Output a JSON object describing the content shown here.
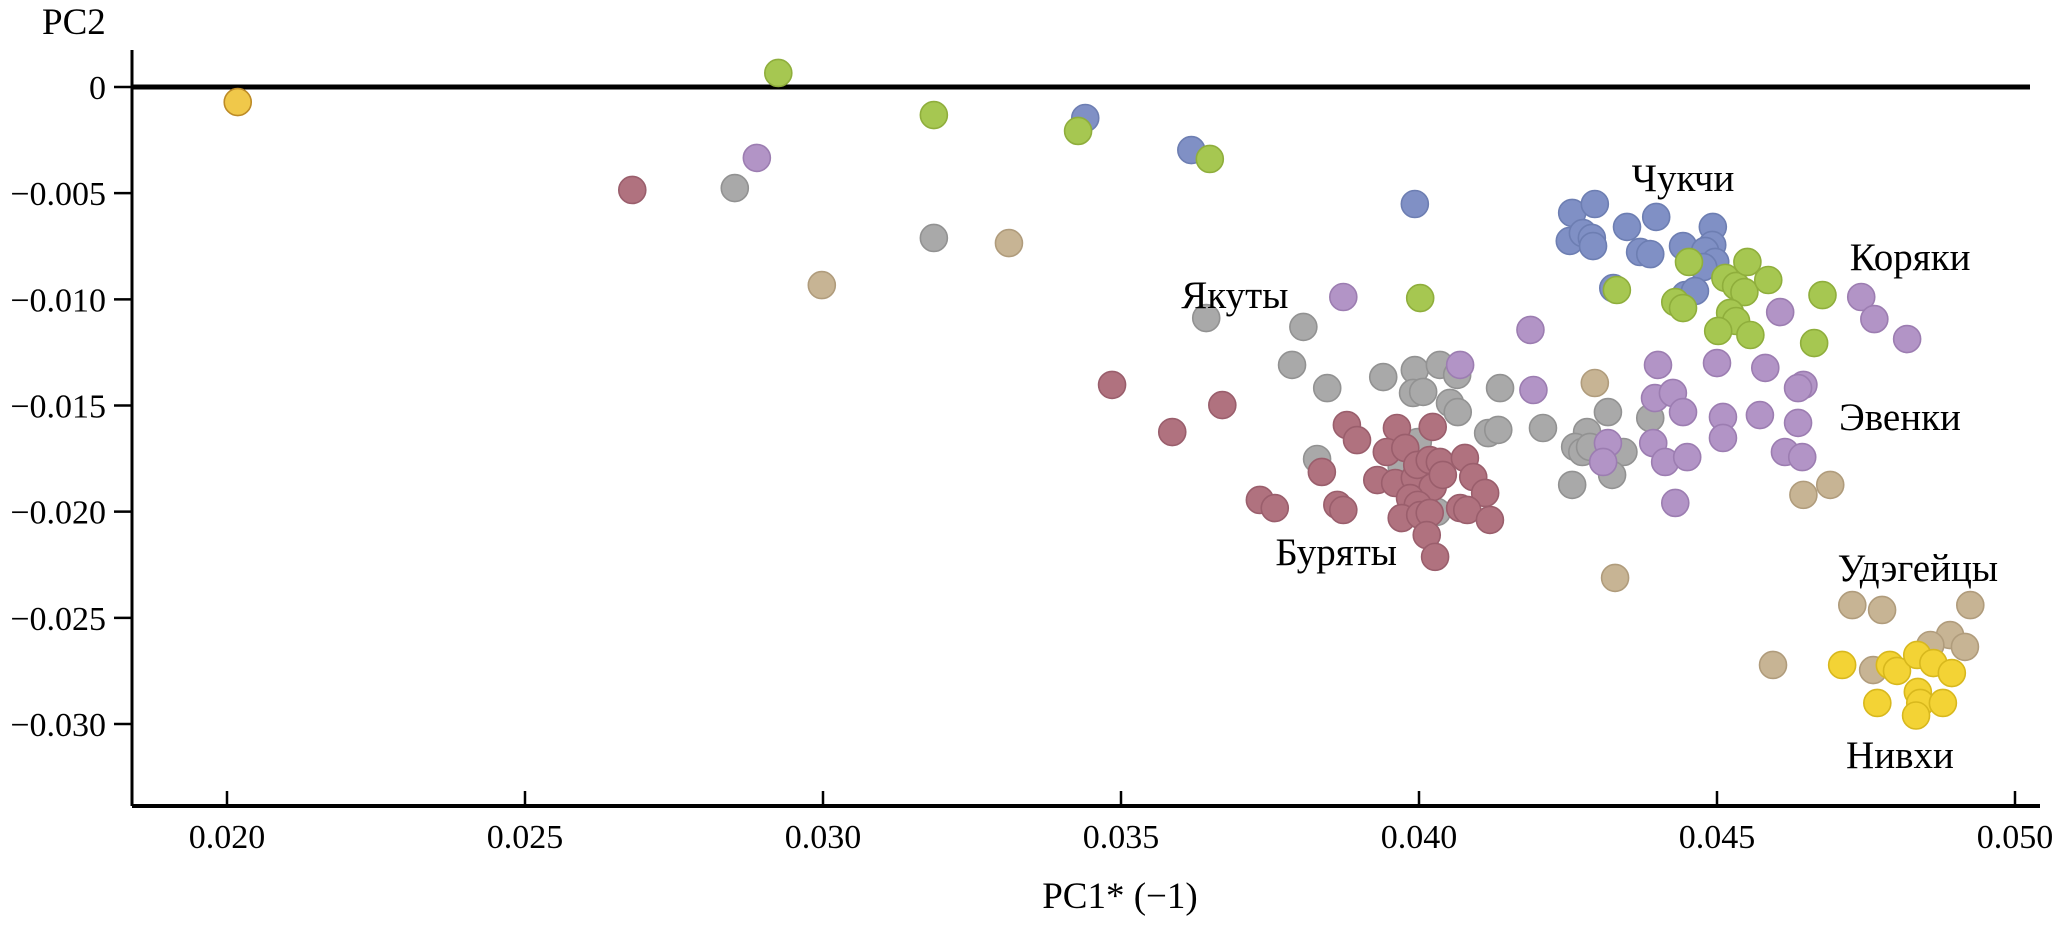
{
  "chart_data": {
    "type": "scatter",
    "xlabel": "PC1* (−1)",
    "ylabel": "PC2",
    "xlim": [
      0.0184,
      0.0504
    ],
    "ylim": [
      -0.0339,
      0.0017
    ],
    "grid": false,
    "legend": "none (clusters labeled inline)",
    "x_ticks": [
      0.02,
      0.025,
      0.03,
      0.035,
      0.04,
      0.045,
      0.05
    ],
    "x_tick_labels": [
      "0.020",
      "0.025",
      "0.030",
      "0.035",
      "0.040",
      "0.045",
      "0.050"
    ],
    "y_ticks": [
      0,
      -0.005,
      -0.01,
      -0.015,
      -0.02,
      -0.025,
      -0.03
    ],
    "y_tick_labels": [
      "0",
      "−0.005",
      "−0.010",
      "−0.015",
      "−0.020",
      "−0.025",
      "−0.030"
    ],
    "series": [
      {
        "name": "Якуты",
        "color": "#a9a9a9",
        "stroke": "#929292",
        "points": [
          [
            0.02852,
            -0.00476
          ],
          [
            0.03186,
            -0.00711
          ],
          [
            0.03643,
            -0.01088
          ],
          [
            0.03806,
            -0.0113
          ],
          [
            0.03787,
            -0.01309
          ],
          [
            0.03846,
            -0.01418
          ],
          [
            0.0394,
            -0.01366
          ],
          [
            0.03993,
            -0.01333
          ],
          [
            0.04035,
            -0.01309
          ],
          [
            0.04064,
            -0.01356
          ],
          [
            0.0399,
            -0.01441
          ],
          [
            0.04007,
            -0.01436
          ],
          [
            0.04052,
            -0.01488
          ],
          [
            0.04065,
            -0.01531
          ],
          [
            0.04136,
            -0.01418
          ],
          [
            0.04116,
            -0.0163
          ],
          [
            0.04133,
            -0.01615
          ],
          [
            0.04208,
            -0.01606
          ],
          [
            0.04317,
            -0.01531
          ],
          [
            0.04282,
            -0.01625
          ],
          [
            0.04262,
            -0.01695
          ],
          [
            0.04274,
            -0.01719
          ],
          [
            0.04287,
            -0.01695
          ],
          [
            0.04343,
            -0.01719
          ],
          [
            0.04324,
            -0.01827
          ],
          [
            0.04257,
            -0.01874
          ],
          [
            0.04388,
            -0.01559
          ],
          [
            0.03829,
            -0.01752
          ],
          [
            0.03998,
            -0.01672
          ],
          [
            0.03971,
            -0.0179
          ],
          [
            0.03997,
            -0.01921
          ],
          [
            0.0403,
            -0.02001
          ]
        ]
      },
      {
        "name": "Чукчи",
        "color": "#8090c5",
        "stroke": "#6d7eb2",
        "points": [
          [
            0.0344,
            -0.00146
          ],
          [
            0.03618,
            -0.00297
          ],
          [
            0.03993,
            -0.00551
          ],
          [
            0.04257,
            -0.00593
          ],
          [
            0.04295,
            -0.00551
          ],
          [
            0.04349,
            -0.00659
          ],
          [
            0.04398,
            -0.00612
          ],
          [
            0.04253,
            -0.00725
          ],
          [
            0.04275,
            -0.00688
          ],
          [
            0.0429,
            -0.00711
          ],
          [
            0.04292,
            -0.00749
          ],
          [
            0.04371,
            -0.00777
          ],
          [
            0.04388,
            -0.00787
          ],
          [
            0.04443,
            -0.00749
          ],
          [
            0.04493,
            -0.00659
          ],
          [
            0.04492,
            -0.00744
          ],
          [
            0.0448,
            -0.00772
          ],
          [
            0.04497,
            -0.00824
          ],
          [
            0.04477,
            -0.00848
          ],
          [
            0.04326,
            -0.00947
          ],
          [
            0.04447,
            -0.0098
          ],
          [
            0.04463,
            -0.00961
          ]
        ]
      },
      {
        "name": "Коряки",
        "color": "#a6c751",
        "stroke": "#8fae3c",
        "points": [
          [
            0.02925,
            0.00066
          ],
          [
            0.03186,
            -0.00132
          ],
          [
            0.03428,
            -0.00207
          ],
          [
            0.03649,
            -0.00339
          ],
          [
            0.04002,
            -0.00994
          ],
          [
            0.04332,
            -0.00956
          ],
          [
            0.04453,
            -0.00824
          ],
          [
            0.0443,
            -0.01013
          ],
          [
            0.04443,
            -0.01041
          ],
          [
            0.04514,
            -0.00899
          ],
          [
            0.04532,
            -0.00937
          ],
          [
            0.04546,
            -0.00966
          ],
          [
            0.04551,
            -0.00824
          ],
          [
            0.04586,
            -0.00909
          ],
          [
            0.04522,
            -0.01064
          ],
          [
            0.04532,
            -0.01102
          ],
          [
            0.04502,
            -0.01149
          ],
          [
            0.04556,
            -0.01168
          ],
          [
            0.04677,
            -0.0098
          ],
          [
            0.04663,
            -0.01206
          ]
        ]
      },
      {
        "name": "Эвенки",
        "color": "#b294c6",
        "stroke": "#9c7db1",
        "points": [
          [
            0.02889,
            -0.00334
          ],
          [
            0.03873,
            -0.00989
          ],
          [
            0.04187,
            -0.01144
          ],
          [
            0.04069,
            -0.01309
          ],
          [
            0.04401,
            -0.01309
          ],
          [
            0.045,
            -0.013
          ],
          [
            0.04581,
            -0.01323
          ],
          [
            0.04606,
            -0.0106
          ],
          [
            0.04645,
            -0.01403
          ],
          [
            0.04742,
            -0.00989
          ],
          [
            0.04764,
            -0.01093
          ],
          [
            0.04819,
            -0.01187
          ],
          [
            0.04192,
            -0.01427
          ],
          [
            0.04317,
            -0.01677
          ],
          [
            0.04309,
            -0.01766
          ],
          [
            0.04396,
            -0.01465
          ],
          [
            0.04426,
            -0.01441
          ],
          [
            0.04443,
            -0.01531
          ],
          [
            0.04393,
            -0.01677
          ],
          [
            0.04413,
            -0.01766
          ],
          [
            0.0445,
            -0.01743
          ],
          [
            0.0451,
            -0.01554
          ],
          [
            0.0451,
            -0.01653
          ],
          [
            0.04572,
            -0.01545
          ],
          [
            0.04636,
            -0.01418
          ],
          [
            0.04636,
            -0.01582
          ],
          [
            0.04614,
            -0.01719
          ],
          [
            0.04643,
            -0.01743
          ],
          [
            0.0443,
            -0.01959
          ]
        ]
      },
      {
        "name": "Буряты",
        "color": "#b0727f",
        "stroke": "#9a5e6c",
        "points": [
          [
            0.0268,
            -0.00485
          ],
          [
            0.03485,
            -0.01403
          ],
          [
            0.0367,
            -0.01498
          ],
          [
            0.03586,
            -0.01625
          ],
          [
            0.03733,
            -0.01945
          ],
          [
            0.03758,
            -0.01983
          ],
          [
            0.03863,
            -0.01968
          ],
          [
            0.03873,
            -0.01992
          ],
          [
            0.03837,
            -0.01813
          ],
          [
            0.03879,
            -0.01592
          ],
          [
            0.03896,
            -0.01663
          ],
          [
            0.03963,
            -0.01606
          ],
          [
            0.04023,
            -0.01601
          ],
          [
            0.03946,
            -0.01719
          ],
          [
            0.03977,
            -0.017
          ],
          [
            0.0393,
            -0.01851
          ],
          [
            0.0396,
            -0.01865
          ],
          [
            0.03993,
            -0.01841
          ],
          [
            0.03997,
            -0.0178
          ],
          [
            0.04018,
            -0.01757
          ],
          [
            0.04035,
            -0.01766
          ],
          [
            0.04023,
            -0.01884
          ],
          [
            0.0404,
            -0.01827
          ],
          [
            0.04077,
            -0.01747
          ],
          [
            0.04091,
            -0.01837
          ],
          [
            0.04111,
            -0.01912
          ],
          [
            0.03985,
            -0.01936
          ],
          [
            0.03998,
            -0.01968
          ],
          [
            0.03971,
            -0.0203
          ],
          [
            0.04002,
            -0.02016
          ],
          [
            0.04018,
            -0.02006
          ],
          [
            0.04069,
            -0.01983
          ],
          [
            0.04081,
            -0.01992
          ],
          [
            0.04119,
            -0.02039
          ],
          [
            0.04013,
            -0.0211
          ],
          [
            0.04027,
            -0.02213
          ]
        ]
      },
      {
        "name": "Удэгейцы",
        "color": "#c7b494",
        "stroke": "#b09c7c",
        "points": [
          [
            0.02998,
            -0.00933
          ],
          [
            0.03312,
            -0.00735
          ],
          [
            0.04295,
            -0.01394
          ],
          [
            0.04329,
            -0.02312
          ],
          [
            0.04645,
            -0.01921
          ],
          [
            0.0469,
            -0.01874
          ],
          [
            0.04727,
            -0.0244
          ],
          [
            0.04777,
            -0.02463
          ],
          [
            0.04925,
            -0.0244
          ],
          [
            0.04891,
            -0.02581
          ],
          [
            0.04916,
            -0.02637
          ],
          [
            0.04858,
            -0.02628
          ],
          [
            0.04762,
            -0.02746
          ],
          [
            0.04594,
            -0.02722
          ]
        ]
      },
      {
        "name": "Нивхи",
        "color": "#f3d335",
        "stroke": "#d8b81d",
        "points": [
          [
            0.0471,
            -0.02722
          ],
          [
            0.0479,
            -0.02722
          ],
          [
            0.04802,
            -0.0275
          ],
          [
            0.04836,
            -0.02675
          ],
          [
            0.04863,
            -0.02713
          ],
          [
            0.04894,
            -0.0276
          ],
          [
            0.04769,
            -0.02901
          ],
          [
            0.04837,
            -0.02849
          ],
          [
            0.04841,
            -0.02901
          ],
          [
            0.04879,
            -0.02901
          ],
          [
            0.04834,
            -0.0296
          ]
        ]
      },
      {
        "name": "outlier-orange",
        "color": "#f0c84a",
        "stroke": "#bd8b26",
        "points": [
          [
            0.02018,
            -0.00071
          ]
        ]
      }
    ],
    "annotations": [
      {
        "text": "Чукчи",
        "x": 0.04443,
        "y": -0.00429
      },
      {
        "text": "Коряки",
        "x": 0.04824,
        "y": -0.00801
      },
      {
        "text": "Якуты",
        "x": 0.03691,
        "y": -0.0098
      },
      {
        "text": "Эвенки",
        "x": 0.04807,
        "y": -0.01554
      },
      {
        "text": "Буряты",
        "x": 0.03861,
        "y": -0.0219
      },
      {
        "text": "Удэгейцы",
        "x": 0.04837,
        "y": -0.02265
      },
      {
        "text": "Нивхи",
        "x": 0.04807,
        "y": -0.03146
      }
    ]
  }
}
